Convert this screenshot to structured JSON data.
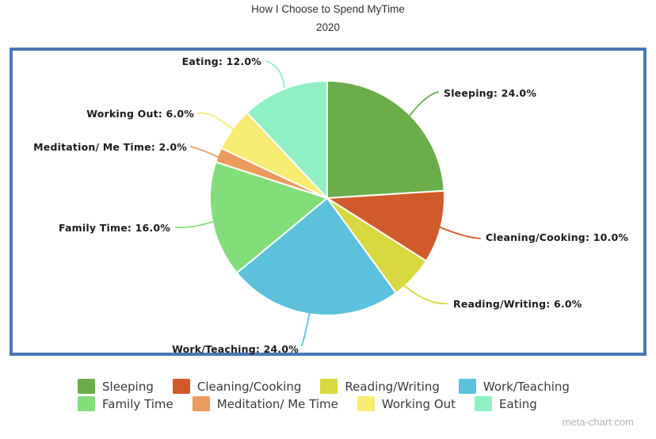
{
  "header": {
    "title": "How I Choose to Spend MyTime",
    "subtitle": "2020"
  },
  "watermark": "meta-chart.com",
  "frame": {
    "border_color": "#4a78b5"
  },
  "chart_data": {
    "type": "pie",
    "title": "How I Choose to Spend MyTime",
    "subtitle": "2020",
    "values_unit": "%",
    "start_angle_deg": 0,
    "direction": "clockwise",
    "legend_position": "bottom",
    "slices": [
      {
        "label": "Sleeping",
        "value": 24.0,
        "color": "#6aad4a",
        "callout_text": "Sleeping: 24.0%"
      },
      {
        "label": "Cleaning/Cooking",
        "value": 10.0,
        "color": "#d15a2d",
        "callout_text": "Cleaning/Cooking: 10.0%"
      },
      {
        "label": "Reading/Writing",
        "value": 6.0,
        "color": "#d7d83f",
        "callout_text": "Reading/Writing: 6.0%"
      },
      {
        "label": "Work/Teaching",
        "value": 24.0,
        "color": "#5bc1dc",
        "callout_text": "Work/Teaching: 24.0%"
      },
      {
        "label": "Family Time",
        "value": 16.0,
        "color": "#84dd7b",
        "callout_text": "Family Time: 16.0%"
      },
      {
        "label": "Meditation/ Me Time",
        "value": 2.0,
        "color": "#ec9a5e",
        "callout_text": "Meditation/ Me Time: 2.0%"
      },
      {
        "label": "Working Out",
        "value": 6.0,
        "color": "#f8ec74",
        "callout_text": "Working Out: 6.0%"
      },
      {
        "label": "Eating",
        "value": 12.0,
        "color": "#90f0c5",
        "callout_text": "Eating: 12.0%"
      }
    ]
  }
}
